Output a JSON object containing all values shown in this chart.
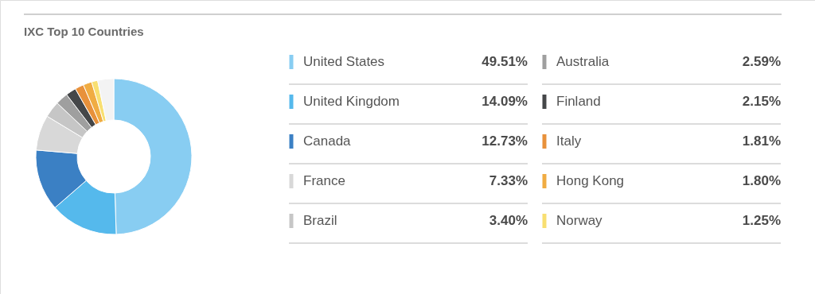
{
  "chart_data": {
    "type": "donut",
    "title": "IXC Top 10 Countries",
    "categories": [
      "United States",
      "United Kingdom",
      "Canada",
      "France",
      "Brazil",
      "Australia",
      "Finland",
      "Italy",
      "Hong Kong",
      "Norway",
      null
    ],
    "values": [
      49.51,
      14.09,
      12.73,
      7.33,
      3.4,
      2.59,
      2.15,
      1.81,
      1.8,
      1.25,
      3.34
    ],
    "colors": [
      "#88cdf2",
      "#55b9ec",
      "#3b80c4",
      "#d8d8d8",
      "#c6c6c6",
      "#9f9f9f",
      "#454749",
      "#e8913b",
      "#f0ac42",
      "#f8df71",
      "#f3f3f3"
    ],
    "value_labels": [
      "49.51%",
      "14.09%",
      "12.73%",
      "7.33%",
      "3.40%",
      "2.59%",
      "2.15%",
      "1.81%",
      "1.80%",
      "1.25%",
      null
    ],
    "legend": "right"
  }
}
